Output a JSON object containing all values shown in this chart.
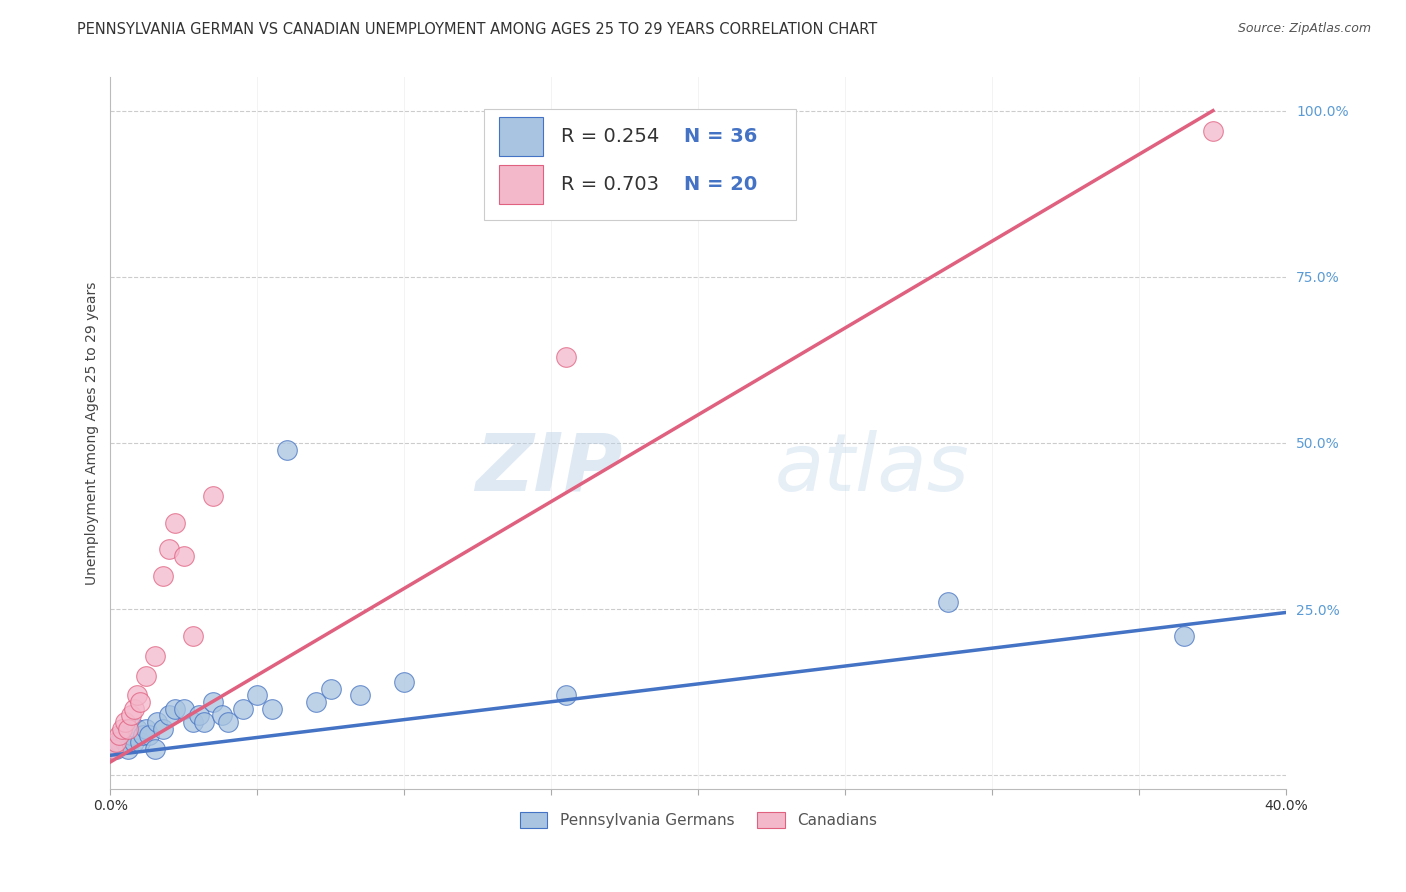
{
  "title": "PENNSYLVANIA GERMAN VS CANADIAN UNEMPLOYMENT AMONG AGES 25 TO 29 YEARS CORRELATION CHART",
  "source": "Source: ZipAtlas.com",
  "ylabel": "Unemployment Among Ages 25 to 29 years",
  "xlim": [
    0.0,
    0.4
  ],
  "ylim": [
    -0.02,
    1.05
  ],
  "xticks": [
    0.0,
    0.05,
    0.1,
    0.15,
    0.2,
    0.25,
    0.3,
    0.35,
    0.4
  ],
  "yticks_right": [
    0.0,
    0.25,
    0.5,
    0.75,
    1.0
  ],
  "blue_color": "#A8C4E0",
  "pink_color": "#F4B8CB",
  "blue_line_color": "#4472C4",
  "pink_line_color": "#E06080",
  "blue_R": 0.254,
  "blue_N": 36,
  "pink_R": 0.703,
  "pink_N": 20,
  "label_blue": "Pennsylvania Germans",
  "label_pink": "Canadians",
  "blue_scatter_x": [
    0.001,
    0.002,
    0.003,
    0.004,
    0.005,
    0.006,
    0.007,
    0.008,
    0.009,
    0.01,
    0.011,
    0.012,
    0.013,
    0.015,
    0.016,
    0.018,
    0.02,
    0.022,
    0.025,
    0.028,
    0.03,
    0.032,
    0.035,
    0.038,
    0.04,
    0.045,
    0.05,
    0.055,
    0.06,
    0.07,
    0.075,
    0.085,
    0.1,
    0.155,
    0.285,
    0.365
  ],
  "blue_scatter_y": [
    0.04,
    0.04,
    0.05,
    0.06,
    0.05,
    0.04,
    0.06,
    0.05,
    0.07,
    0.05,
    0.06,
    0.07,
    0.06,
    0.04,
    0.08,
    0.07,
    0.09,
    0.1,
    0.1,
    0.08,
    0.09,
    0.08,
    0.11,
    0.09,
    0.08,
    0.1,
    0.12,
    0.1,
    0.49,
    0.11,
    0.13,
    0.12,
    0.14,
    0.12,
    0.26,
    0.21
  ],
  "pink_scatter_x": [
    0.001,
    0.002,
    0.003,
    0.004,
    0.005,
    0.006,
    0.007,
    0.008,
    0.009,
    0.01,
    0.012,
    0.015,
    0.018,
    0.02,
    0.022,
    0.025,
    0.028,
    0.035,
    0.155,
    0.375
  ],
  "pink_scatter_y": [
    0.04,
    0.05,
    0.06,
    0.07,
    0.08,
    0.07,
    0.09,
    0.1,
    0.12,
    0.11,
    0.15,
    0.18,
    0.3,
    0.34,
    0.38,
    0.33,
    0.21,
    0.42,
    0.63,
    0.97
  ],
  "blue_line_x": [
    0.0,
    0.4
  ],
  "blue_line_y": [
    0.03,
    0.245
  ],
  "pink_line_x": [
    0.0,
    0.375
  ],
  "pink_line_y": [
    0.02,
    1.0
  ],
  "watermark_zip": "ZIP",
  "watermark_atlas": "atlas",
  "background_color": "#FFFFFF",
  "grid_color": "#CCCCCC",
  "title_fontsize": 10.5,
  "axis_label_fontsize": 10,
  "tick_fontsize": 10,
  "legend_fontsize": 14,
  "right_tick_color": "#5B9BD5"
}
